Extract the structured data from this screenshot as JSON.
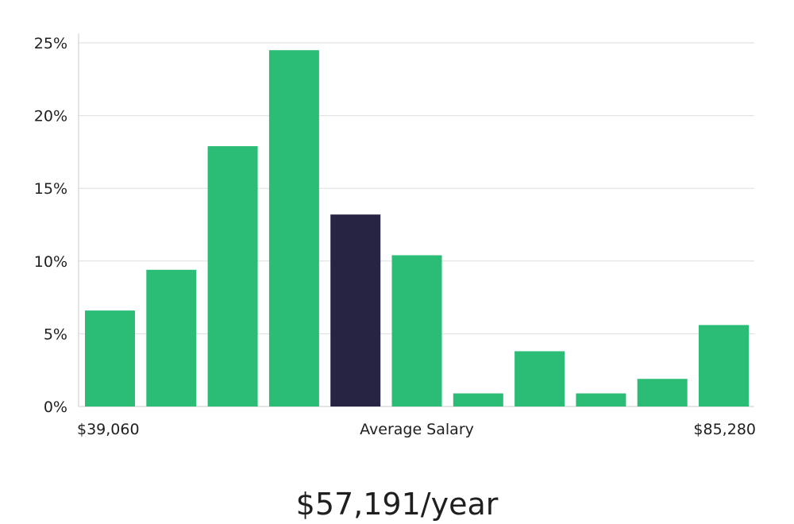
{
  "chart_data": {
    "type": "bar",
    "categories": [
      "1",
      "2",
      "3",
      "4",
      "5",
      "6",
      "7",
      "8",
      "9",
      "10",
      "11"
    ],
    "values": [
      6.6,
      9.4,
      17.9,
      24.5,
      13.2,
      10.4,
      0.9,
      3.8,
      0.9,
      1.9,
      5.6
    ],
    "highlight_index": 4,
    "ylim": [
      0,
      25
    ],
    "yticks": [
      "0%",
      "5%",
      "10%",
      "15%",
      "20%",
      "25%"
    ],
    "ytick_values": [
      0,
      5,
      10,
      15,
      20,
      25
    ],
    "grid": true,
    "x_min_label": "$39,060",
    "x_center_label": "Average Salary",
    "x_max_label": "$85,280",
    "colors": {
      "bar": "#2bbd76",
      "highlight": "#272443",
      "grid": "#dddddd",
      "axis": "#cccccc"
    }
  },
  "salary_text": "$57,191/year"
}
